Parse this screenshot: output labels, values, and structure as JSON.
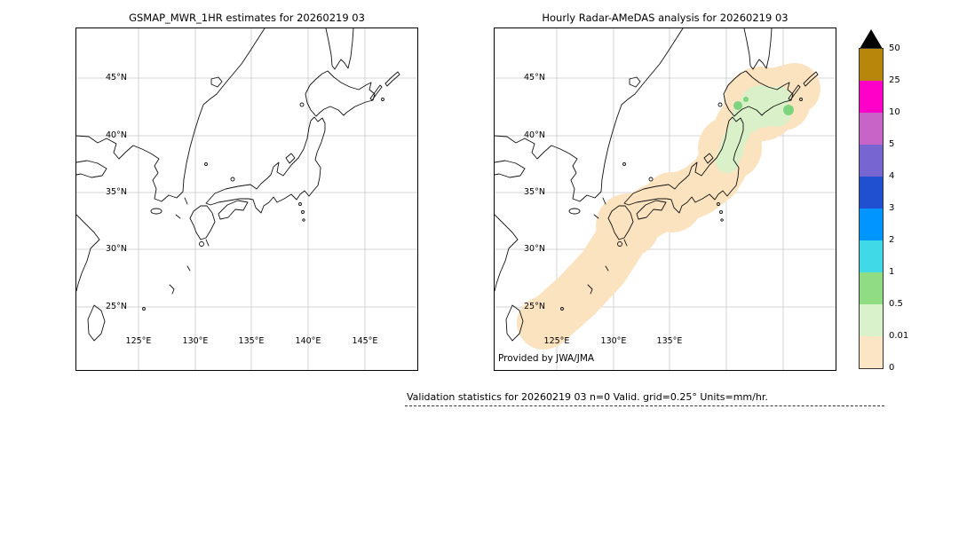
{
  "left_panel": {
    "title": "GSMAP_MWR_1HR estimates for 20260219 03",
    "lat_labels": [
      "45°N",
      "40°N",
      "35°N",
      "30°N",
      "25°N"
    ],
    "lon_labels": [
      "125°E",
      "130°E",
      "135°E",
      "140°E",
      "145°E"
    ]
  },
  "right_panel": {
    "title": "Hourly Radar-AMeDAS analysis for 20260219 03",
    "lat_labels": [
      "45°N",
      "40°N",
      "35°N",
      "30°N",
      "25°N"
    ],
    "lon_labels": [
      "125°E",
      "130°E",
      "135°E"
    ],
    "credit": "Provided by JWA/JMA"
  },
  "precip": {
    "trace_color": "#fbe3c0",
    "light_color": "#d9f0c8",
    "moderate_color": "#7ed47e"
  },
  "colorbar": {
    "units": "mm/hr",
    "tick_labels": [
      "50",
      "25",
      "10",
      "5",
      "4",
      "3",
      "2",
      "1",
      "0.5",
      "0.01",
      "0"
    ],
    "segment_colors_top_to_bottom": [
      "#b8860b",
      "#ff00c8",
      "#c863c8",
      "#7766d2",
      "#2050d0",
      "#0095ff",
      "#40d9e8",
      "#8fdc82",
      "#d9f2cc",
      "#fbe5c5"
    ],
    "overflow_color": "#000000"
  },
  "footer": {
    "validation_text": "Validation statistics for 20260219 03  n=0 Valid. grid=0.25° Units=mm/hr."
  }
}
